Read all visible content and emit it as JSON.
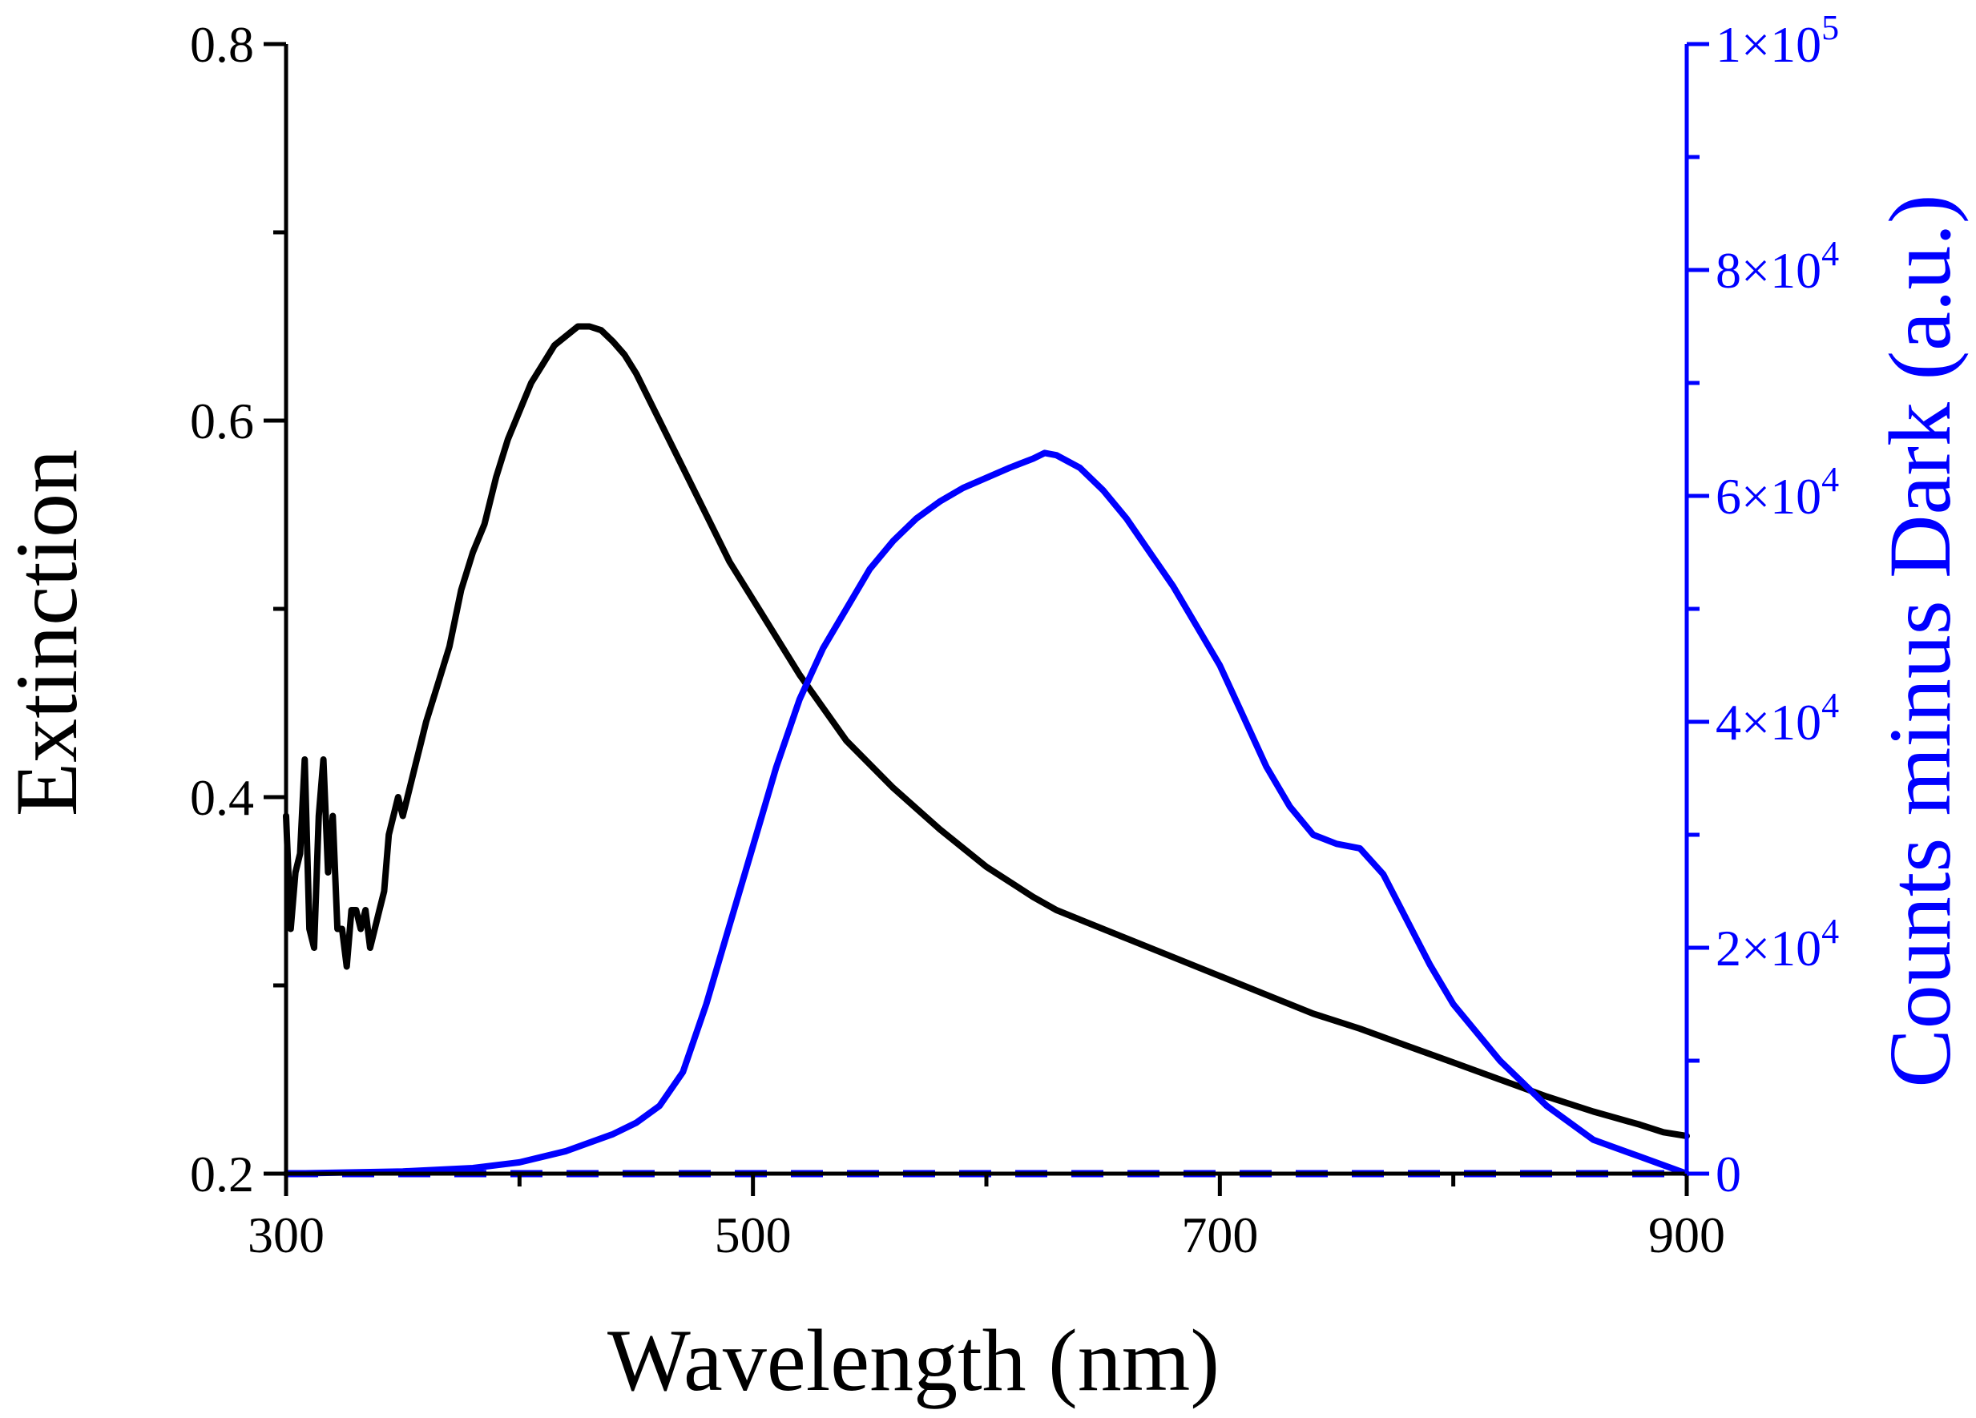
{
  "chart_data": {
    "type": "line",
    "title": "",
    "xlabel": "Wavelength (nm)",
    "ylabel_left": "Extinction",
    "ylabel_right": "Counts minus Dark (a.u.)",
    "xlim": [
      300,
      900
    ],
    "ylim_left": [
      0.2,
      0.8
    ],
    "ylim_right": [
      0,
      100000
    ],
    "x_ticks": [
      {
        "value": 300,
        "label": "300"
      },
      {
        "value": 500,
        "label": "500"
      },
      {
        "value": 700,
        "label": "700"
      },
      {
        "value": 900,
        "label": "900"
      }
    ],
    "x_minor_ticks": [
      400,
      600,
      800
    ],
    "y_left_ticks": [
      {
        "value": 0.2,
        "label": "0.2"
      },
      {
        "value": 0.4,
        "label": "0.4"
      },
      {
        "value": 0.6,
        "label": "0.6"
      },
      {
        "value": 0.8,
        "label": "0.8"
      }
    ],
    "y_left_minor_ticks": [
      0.3,
      0.5,
      0.7
    ],
    "y_right_ticks": [
      {
        "value": 0,
        "mant": "0",
        "exp": ""
      },
      {
        "value": 20000,
        "mant": "2×10",
        "exp": "4"
      },
      {
        "value": 40000,
        "mant": "4×10",
        "exp": "4"
      },
      {
        "value": 60000,
        "mant": "6×10",
        "exp": "4"
      },
      {
        "value": 80000,
        "mant": "8×10",
        "exp": "4"
      },
      {
        "value": 100000,
        "mant": "1×10",
        "exp": "5"
      }
    ],
    "y_right_minor_ticks": [
      10000,
      30000,
      50000,
      70000,
      90000
    ],
    "colors": {
      "axis_left": "#000000",
      "axis_right": "#0000ff",
      "extinction": "#000000",
      "counts": "#0000ff",
      "dark": "#0000ff"
    },
    "series": [
      {
        "axis": "left",
        "style": "solid",
        "x": [
          300,
          302,
          304,
          306,
          308,
          310,
          312,
          314,
          316,
          318,
          320,
          322,
          324,
          326,
          328,
          330,
          332,
          334,
          336,
          338,
          340,
          342,
          344,
          346,
          348,
          350,
          352,
          354,
          356,
          358,
          360,
          365,
          370,
          375,
          380,
          385,
          390,
          395,
          400,
          405,
          410,
          415,
          420,
          425,
          430,
          435,
          440,
          445,
          450,
          460,
          470,
          480,
          490,
          500,
          520,
          540,
          560,
          580,
          600,
          620,
          630,
          640,
          660,
          680,
          700,
          720,
          740,
          760,
          780,
          800,
          820,
          840,
          860,
          880,
          890,
          900
        ],
        "y": [
          0.39,
          0.33,
          0.36,
          0.37,
          0.42,
          0.33,
          0.32,
          0.39,
          0.42,
          0.36,
          0.39,
          0.33,
          0.33,
          0.31,
          0.34,
          0.34,
          0.33,
          0.34,
          0.32,
          0.33,
          0.34,
          0.35,
          0.38,
          0.39,
          0.4,
          0.39,
          0.4,
          0.41,
          0.42,
          0.43,
          0.44,
          0.46,
          0.48,
          0.51,
          0.53,
          0.545,
          0.57,
          0.59,
          0.605,
          0.62,
          0.63,
          0.64,
          0.645,
          0.65,
          0.65,
          0.648,
          0.642,
          0.635,
          0.625,
          0.6,
          0.575,
          0.55,
          0.525,
          0.505,
          0.465,
          0.43,
          0.405,
          0.383,
          0.363,
          0.347,
          0.34,
          0.335,
          0.325,
          0.315,
          0.305,
          0.295,
          0.285,
          0.277,
          0.268,
          0.259,
          0.25,
          0.241,
          0.233,
          0.226,
          0.222,
          0.22
        ]
      },
      {
        "axis": "right",
        "style": "solid",
        "x": [
          300,
          350,
          380,
          400,
          420,
          440,
          450,
          460,
          470,
          480,
          490,
          500,
          510,
          520,
          530,
          540,
          550,
          560,
          570,
          580,
          590,
          600,
          610,
          620,
          625,
          630,
          640,
          650,
          660,
          670,
          680,
          690,
          700,
          710,
          720,
          730,
          740,
          750,
          760,
          770,
          780,
          790,
          800,
          820,
          840,
          860,
          880,
          900
        ],
        "y": [
          0,
          200,
          500,
          1000,
          2000,
          3500,
          4500,
          6000,
          9000,
          15000,
          22000,
          29000,
          36000,
          42000,
          46500,
          50000,
          53500,
          56000,
          58000,
          59500,
          60700,
          61600,
          62500,
          63300,
          63800,
          63600,
          62500,
          60500,
          58000,
          55000,
          52000,
          48500,
          45000,
          40500,
          36000,
          32500,
          30000,
          29200,
          28800,
          26500,
          22500,
          18500,
          15000,
          10000,
          6000,
          3000,
          1500,
          0
        ]
      },
      {
        "axis": "right",
        "style": "dashed",
        "x": [
          300,
          900
        ],
        "y": [
          0,
          0
        ]
      }
    ]
  }
}
